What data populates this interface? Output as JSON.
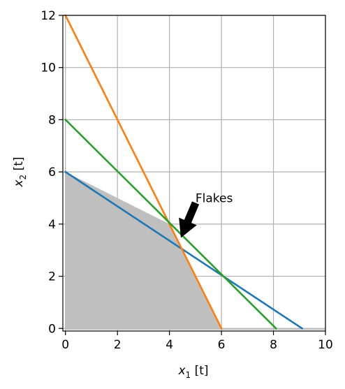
{
  "chart_data": {
    "type": "line",
    "xlabel_var": "x",
    "xlabel_sub": "1",
    "xlabel_unit": " [t]",
    "ylabel_var": "x",
    "ylabel_sub": "2",
    "ylabel_unit": " [t]",
    "xlim": [
      -0.1,
      10
    ],
    "ylim": [
      -0.1,
      12
    ],
    "xticks": [
      0,
      2,
      4,
      6,
      8,
      10
    ],
    "yticks": [
      0,
      2,
      4,
      6,
      8,
      10,
      12
    ],
    "grid": true,
    "series": [
      {
        "color": "#1f77b4",
        "x": [
          0,
          9.1
        ],
        "y": [
          6,
          0
        ]
      },
      {
        "color": "#ff7f0e",
        "x": [
          0,
          6
        ],
        "y": [
          12,
          0
        ]
      },
      {
        "color": "#2ca02c",
        "x": [
          0,
          8.1
        ],
        "y": [
          8,
          0
        ]
      }
    ],
    "feasible_region": {
      "color": "#bfbfbf",
      "polygon": [
        [
          0,
          0
        ],
        [
          0,
          6
        ],
        [
          4,
          4
        ],
        [
          6,
          0
        ],
        [
          10,
          0
        ],
        [
          10,
          -0.05
        ],
        [
          0,
          -0.05
        ]
      ]
    },
    "annotation": {
      "text": "Flakes",
      "text_x": 5,
      "text_y": 5,
      "arrow_tip_x": 4.45,
      "arrow_tip_y": 3.5,
      "arrow_tail_x": 5.0,
      "arrow_tail_y": 4.8
    }
  }
}
